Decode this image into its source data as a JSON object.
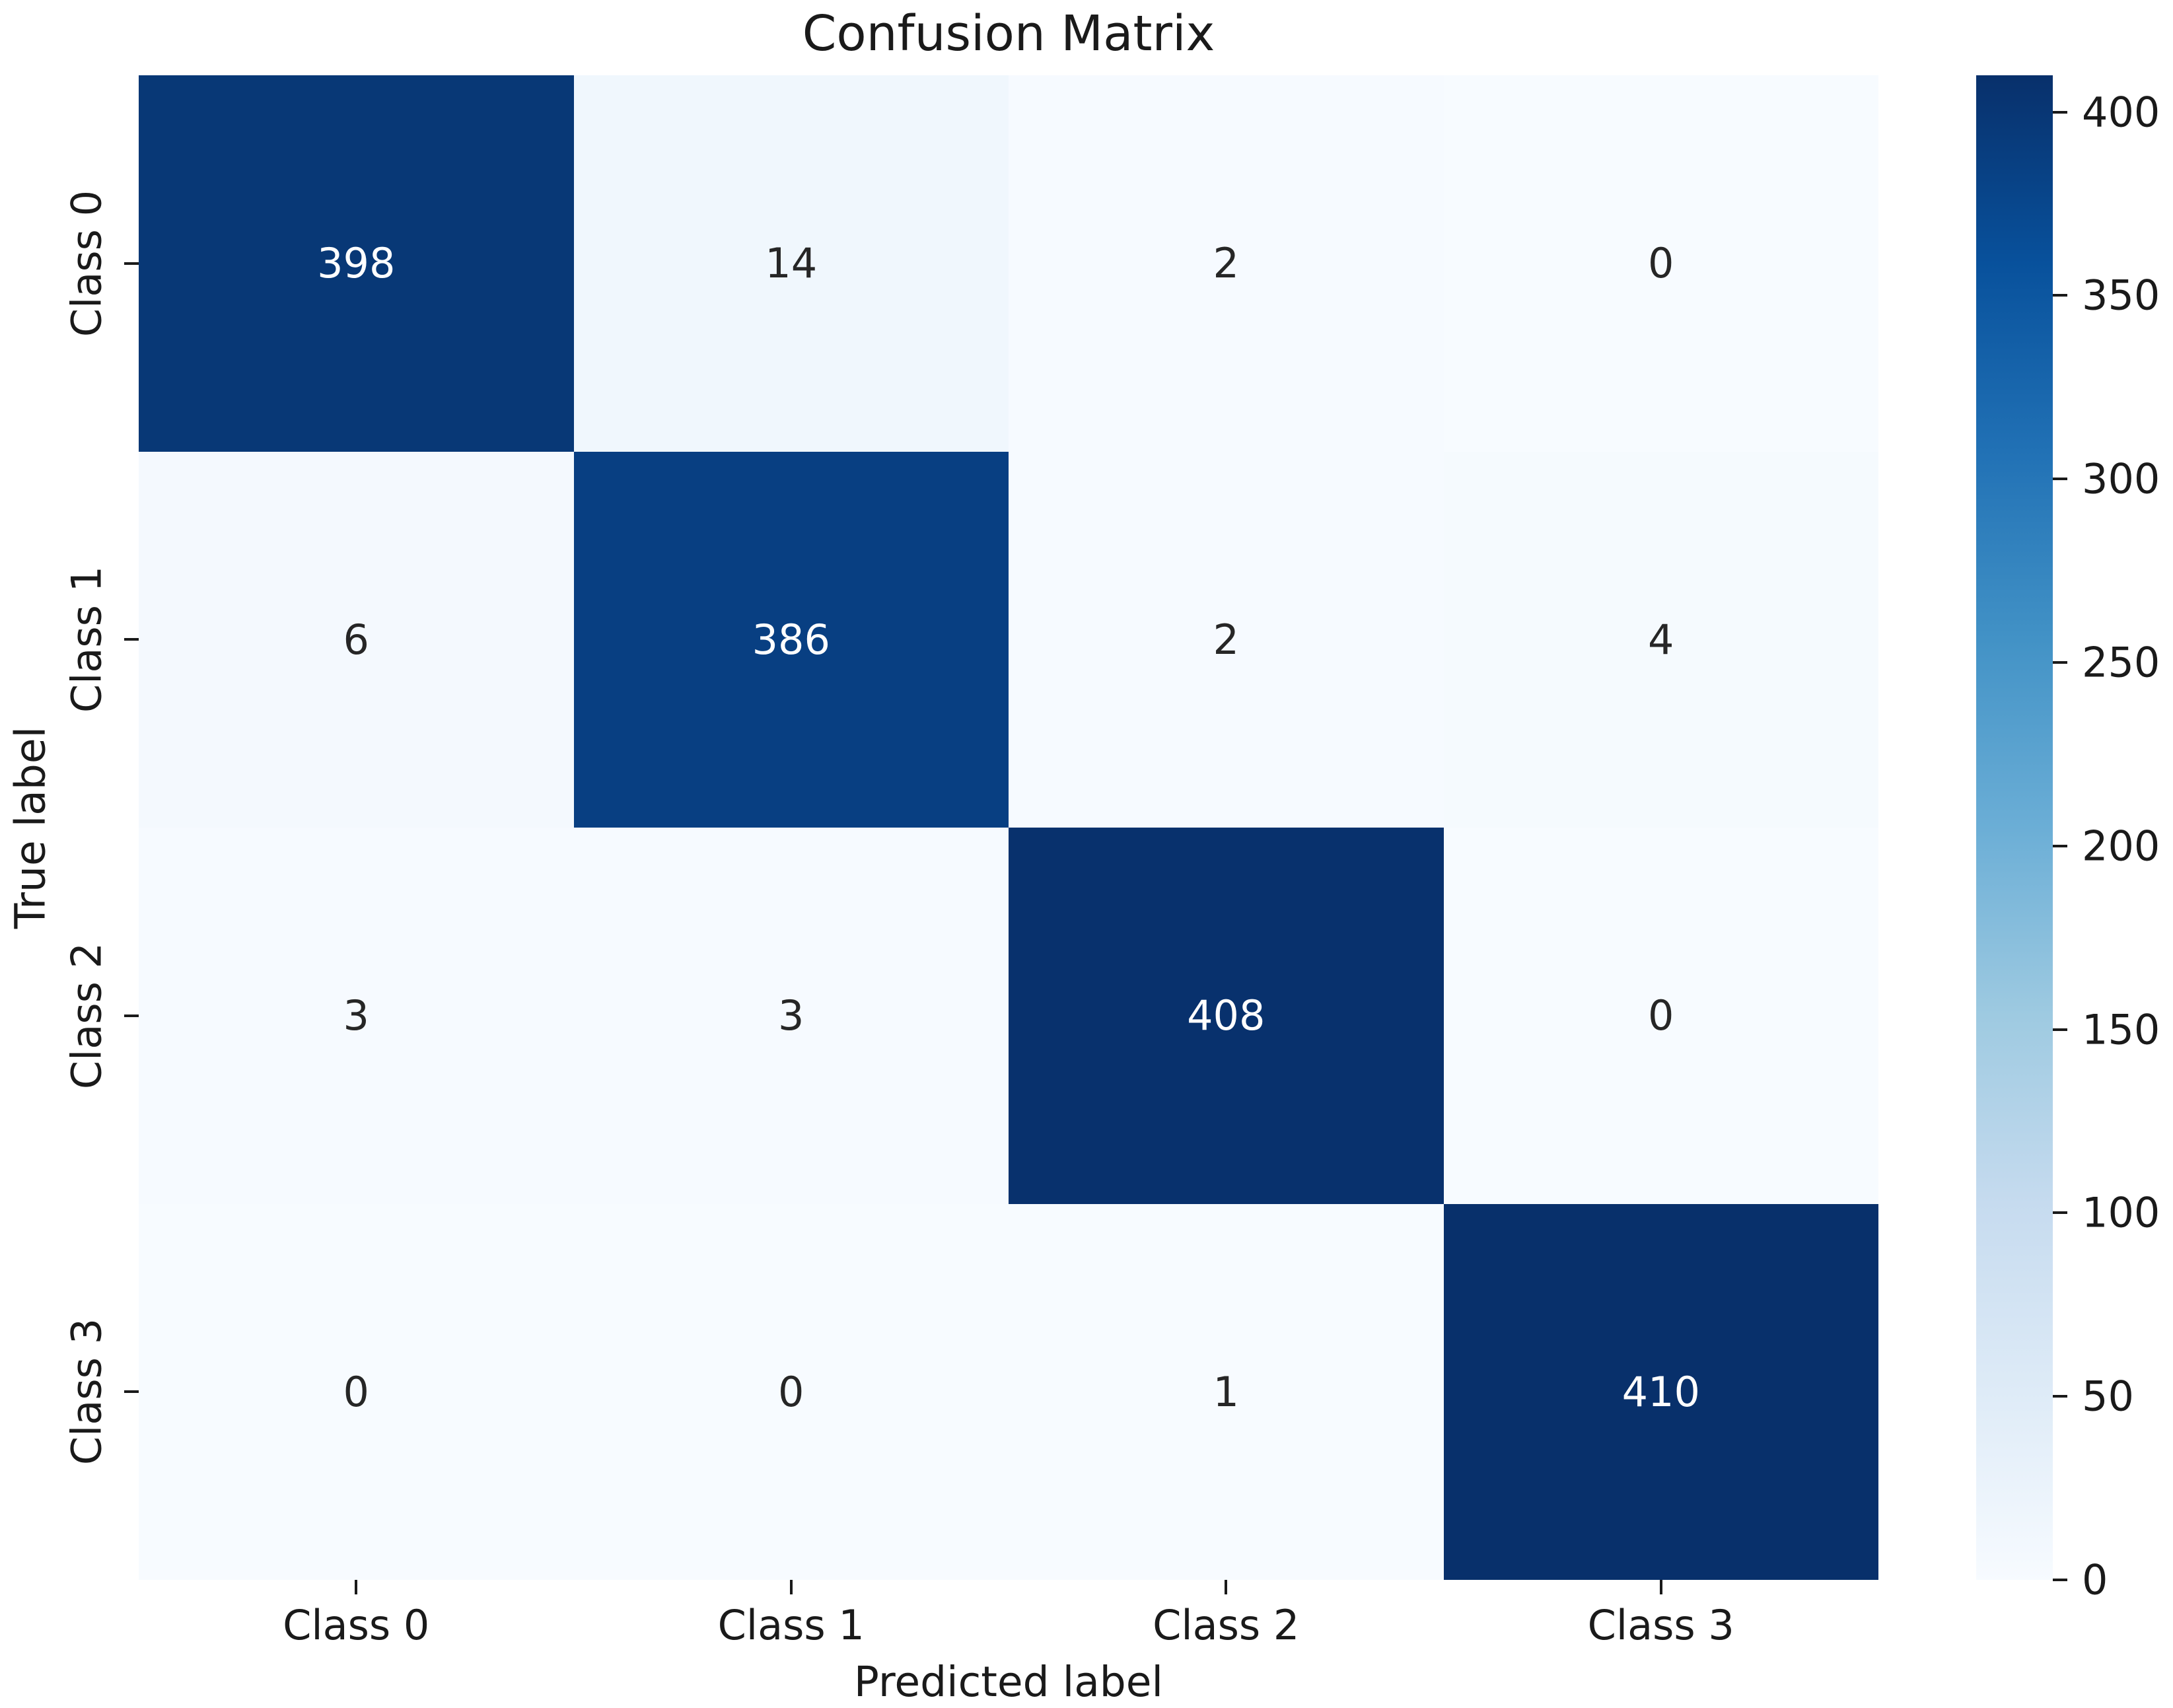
{
  "title": "Confusion Matrix",
  "chart_data": {
    "type": "heatmap",
    "title": "Confusion Matrix",
    "xlabel": "Predicted label",
    "ylabel": "True label",
    "x_tick_labels": [
      "Class 0",
      "Class 1",
      "Class 2",
      "Class 3"
    ],
    "y_tick_labels": [
      "Class 0",
      "Class 1",
      "Class 2",
      "Class 3"
    ],
    "matrix": [
      [
        398,
        14,
        2,
        0
      ],
      [
        6,
        386,
        2,
        4
      ],
      [
        3,
        3,
        408,
        0
      ],
      [
        0,
        0,
        1,
        410
      ]
    ],
    "vmin": 0,
    "vmax": 410,
    "colormap": "Blues",
    "colorbar_ticks": [
      400,
      350,
      300,
      250,
      200,
      150,
      100,
      50,
      0
    ],
    "colorbar_position": "right",
    "grid": false,
    "cell_annotations": true
  },
  "colors": {
    "cmap_stops": [
      "#f7fbff",
      "#deebf7",
      "#c6dbef",
      "#9ecae1",
      "#6baed6",
      "#4292c6",
      "#2171b5",
      "#08519c",
      "#08306b"
    ],
    "annotation_light": "#ffffff",
    "annotation_dark": "#262626",
    "axis_text": "#1a1a1a",
    "background": "#ffffff"
  }
}
